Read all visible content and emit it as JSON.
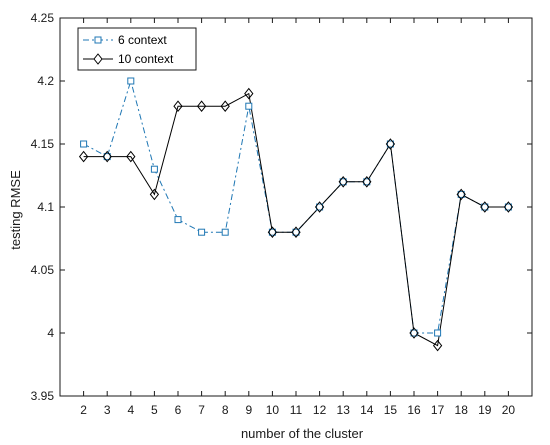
{
  "chart_data": {
    "type": "line",
    "title": "",
    "xlabel": "number of the cluster",
    "ylabel": "testing RMSE",
    "xlim": [
      1,
      21
    ],
    "ylim": [
      3.95,
      4.25
    ],
    "x_ticks": [
      2,
      3,
      4,
      5,
      6,
      7,
      8,
      9,
      10,
      11,
      12,
      13,
      14,
      15,
      16,
      17,
      18,
      19,
      20
    ],
    "y_ticks": [
      3.95,
      4,
      4.05,
      4.1,
      4.15,
      4.2,
      4.25
    ],
    "y_tick_labels": [
      "3.95",
      "4",
      "4.05",
      "4.1",
      "4.15",
      "4.2",
      "4.25"
    ],
    "grid": false,
    "legend_position": "top-left",
    "series": [
      {
        "name": "6 context",
        "color": "#1f77b4",
        "line_style": "dash-dot",
        "marker": "square",
        "x": [
          2,
          3,
          4,
          5,
          6,
          7,
          8,
          9,
          10,
          11,
          12,
          13,
          14,
          15,
          16,
          17,
          18,
          19,
          20
        ],
        "values": [
          4.15,
          4.14,
          4.2,
          4.13,
          4.09,
          4.08,
          4.08,
          4.18,
          4.08,
          4.08,
          4.1,
          4.12,
          4.12,
          4.15,
          4.0,
          4.0,
          4.11,
          4.1,
          4.1
        ]
      },
      {
        "name": "10 context",
        "color": "#000000",
        "line_style": "solid",
        "marker": "diamond",
        "x": [
          2,
          3,
          4,
          5,
          6,
          7,
          8,
          9,
          10,
          11,
          12,
          13,
          14,
          15,
          16,
          17,
          18,
          19,
          20
        ],
        "values": [
          4.14,
          4.14,
          4.14,
          4.11,
          4.18,
          4.18,
          4.18,
          4.19,
          4.08,
          4.08,
          4.1,
          4.12,
          4.12,
          4.15,
          4.0,
          3.99,
          4.11,
          4.1,
          4.1
        ]
      }
    ]
  }
}
